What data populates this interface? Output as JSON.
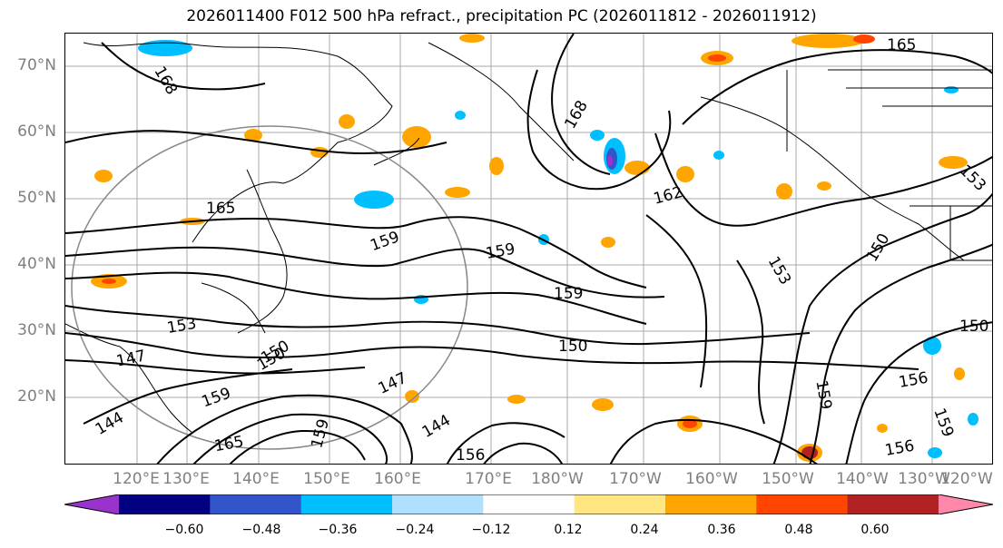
{
  "title": "2026011400 F012 500 hPa refract., precipitation PC (2026011812 - 2026011912)",
  "lat_labels": [
    "70°N",
    "60°N",
    "50°N",
    "40°N",
    "30°N",
    "20°N"
  ],
  "lon_labels": [
    "120°E",
    "130°E",
    "140°E",
    "150°E",
    "160°E",
    "170°E",
    "180°W",
    "170°W",
    "160°W",
    "150°W",
    "140°W",
    "130°W",
    "120°W"
  ],
  "contour_labels": [
    {
      "text": "168"
    },
    {
      "text": "165"
    },
    {
      "text": "168"
    },
    {
      "text": "162"
    },
    {
      "text": "165"
    },
    {
      "text": "159"
    },
    {
      "text": "159"
    },
    {
      "text": "159"
    },
    {
      "text": "153"
    },
    {
      "text": "150"
    },
    {
      "text": "147"
    },
    {
      "text": "150"
    },
    {
      "text": "144"
    },
    {
      "text": "147"
    },
    {
      "text": "144"
    },
    {
      "text": "165"
    },
    {
      "text": "159"
    },
    {
      "text": "150"
    },
    {
      "text": "156"
    },
    {
      "text": "159"
    },
    {
      "text": "156"
    },
    {
      "text": "153"
    },
    {
      "text": "150"
    },
    {
      "text": "159"
    },
    {
      "text": "156"
    },
    {
      "text": "159"
    },
    {
      "text": "153"
    },
    {
      "text": "150"
    }
  ],
  "colorbar": {
    "colors": [
      "#9933cc",
      "#000080",
      "#3355cc",
      "#00bfff",
      "#b0e0ff",
      "#ffffff",
      "#ffe680",
      "#ffa500",
      "#ff4500",
      "#b22222",
      "#ff88aa"
    ],
    "ticks": [
      "−0.60",
      "−0.48",
      "−0.36",
      "−0.24",
      "−0.12",
      "0.12",
      "0.24",
      "0.36",
      "0.48",
      "0.60"
    ]
  }
}
